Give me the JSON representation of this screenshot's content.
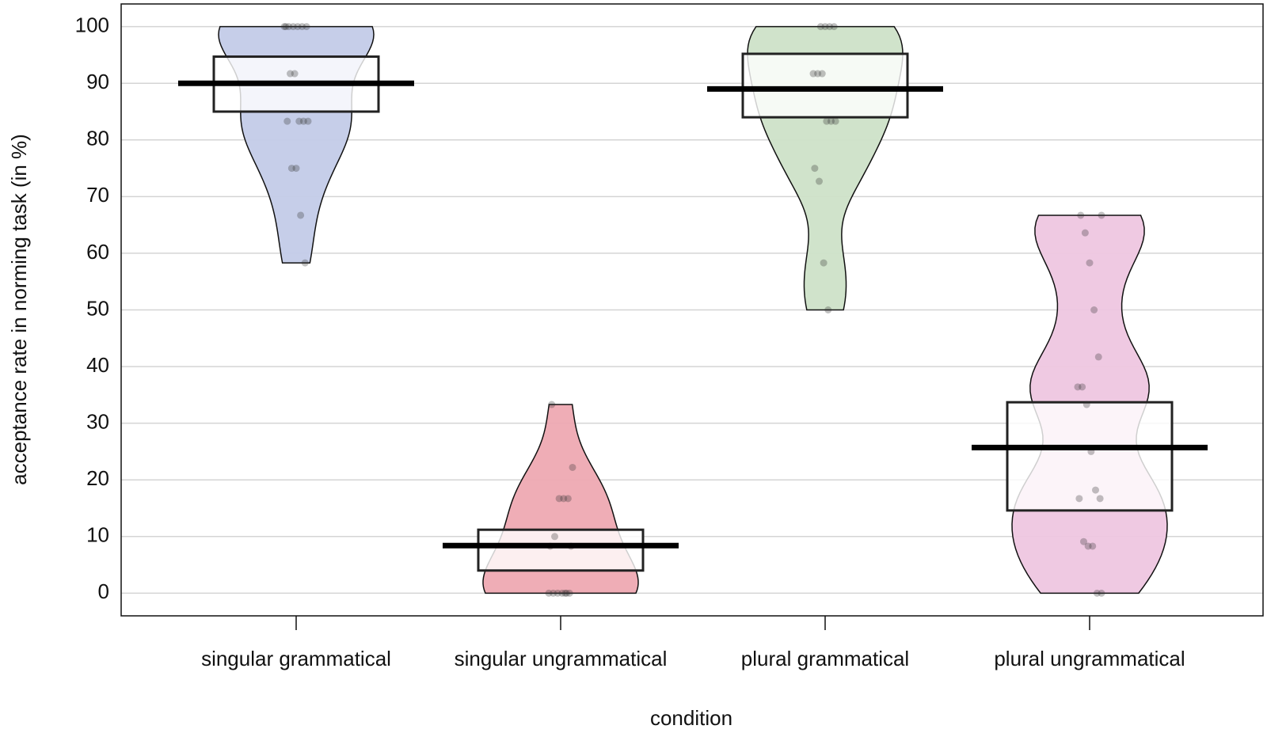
{
  "chart_data": {
    "type": "pirate",
    "x_label": "condition",
    "y_label": "acceptance rate in norming task (in %)",
    "categories": [
      "singular grammatical",
      "singular ungrammatical",
      "plural grammatical",
      "plural ungrammatical"
    ],
    "colors": [
      "#c3cbe8",
      "#eea9b2",
      "#cde1c8",
      "#eec6e0"
    ],
    "means": [
      90,
      8.4,
      89,
      25.7
    ],
    "intervals": [
      [
        85,
        94.7
      ],
      [
        4,
        11.2
      ],
      [
        84,
        95.2
      ],
      [
        14.6,
        33.7
      ]
    ],
    "points": [
      [
        100,
        100,
        100,
        100,
        100,
        100,
        100,
        91.7,
        91.7,
        83.3,
        83.3,
        83.3,
        83.3,
        75,
        75,
        66.7,
        58.3
      ],
      [
        0,
        0,
        0,
        0,
        0,
        0,
        0,
        8.3,
        8.3,
        10,
        16.7,
        16.7,
        16.7,
        22.2,
        33.3
      ],
      [
        100,
        100,
        100,
        100,
        91.7,
        91.7,
        91.7,
        83.3,
        83.3,
        83.3,
        75,
        72.7,
        58.3,
        50
      ],
      [
        66.7,
        66.7,
        63.6,
        58.3,
        50,
        41.7,
        36.4,
        36.4,
        33.3,
        25,
        18.2,
        16.7,
        16.7,
        9.1,
        8.3,
        8.3,
        0,
        0
      ]
    ],
    "ylim": [
      -4,
      104
    ],
    "yticks": [
      0,
      10,
      20,
      30,
      40,
      50,
      60,
      70,
      80,
      90,
      100
    ],
    "grid": true
  }
}
